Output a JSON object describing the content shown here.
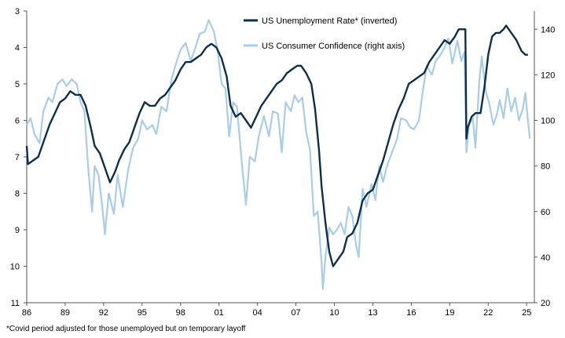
{
  "chart_data": {
    "type": "line",
    "footnote": "*Covid period adjusted for those unemployed but on temporary layoff",
    "x_ticks": [
      "86",
      "89",
      "92",
      "95",
      "98",
      "01",
      "04",
      "07",
      "10",
      "13",
      "16",
      "19",
      "22",
      "25"
    ],
    "x_range": [
      1986.0,
      2025.6
    ],
    "left_axis": {
      "ticks": [
        3,
        4,
        5,
        6,
        7,
        8,
        9,
        10,
        11
      ],
      "range": [
        3,
        11
      ],
      "inverted": true
    },
    "right_axis": {
      "ticks": [
        140,
        120,
        100,
        80,
        60,
        40,
        20
      ],
      "range": [
        20,
        145
      ]
    },
    "series": [
      {
        "name": "US Unemployment Rate* (inverted)",
        "axis": "left",
        "color": "#0b2f4f",
        "points": [
          [
            1986.0,
            6.7
          ],
          [
            1986.1,
            7.2
          ],
          [
            1986.5,
            7.1
          ],
          [
            1986.9,
            7.0
          ],
          [
            1987.3,
            6.6
          ],
          [
            1987.8,
            6.1
          ],
          [
            1988.2,
            5.8
          ],
          [
            1988.6,
            5.5
          ],
          [
            1989.0,
            5.4
          ],
          [
            1989.4,
            5.2
          ],
          [
            1989.8,
            5.3
          ],
          [
            1990.2,
            5.3
          ],
          [
            1990.6,
            5.6
          ],
          [
            1991.0,
            6.2
          ],
          [
            1991.3,
            6.7
          ],
          [
            1991.7,
            6.9
          ],
          [
            1992.1,
            7.3
          ],
          [
            1992.5,
            7.7
          ],
          [
            1992.9,
            7.4
          ],
          [
            1993.2,
            7.1
          ],
          [
            1993.6,
            6.8
          ],
          [
            1994.0,
            6.6
          ],
          [
            1994.4,
            6.2
          ],
          [
            1994.8,
            5.8
          ],
          [
            1995.2,
            5.5
          ],
          [
            1995.6,
            5.6
          ],
          [
            1996.0,
            5.6
          ],
          [
            1996.4,
            5.4
          ],
          [
            1996.8,
            5.3
          ],
          [
            1997.2,
            5.1
          ],
          [
            1997.6,
            4.9
          ],
          [
            1998.0,
            4.6
          ],
          [
            1998.4,
            4.4
          ],
          [
            1998.8,
            4.4
          ],
          [
            1999.2,
            4.3
          ],
          [
            1999.6,
            4.2
          ],
          [
            2000.0,
            4.0
          ],
          [
            2000.4,
            3.9
          ],
          [
            2000.8,
            4.0
          ],
          [
            2001.2,
            4.3
          ],
          [
            2001.6,
            4.8
          ],
          [
            2001.9,
            5.6
          ],
          [
            2002.3,
            5.9
          ],
          [
            2002.7,
            5.8
          ],
          [
            2003.1,
            6.0
          ],
          [
            2003.5,
            6.2
          ],
          [
            2003.9,
            5.9
          ],
          [
            2004.3,
            5.6
          ],
          [
            2004.7,
            5.4
          ],
          [
            2005.1,
            5.2
          ],
          [
            2005.5,
            5.0
          ],
          [
            2005.9,
            4.9
          ],
          [
            2006.3,
            4.7
          ],
          [
            2006.7,
            4.6
          ],
          [
            2007.1,
            4.5
          ],
          [
            2007.4,
            4.5
          ],
          [
            2007.8,
            4.7
          ],
          [
            2008.2,
            5.0
          ],
          [
            2008.5,
            5.7
          ],
          [
            2008.8,
            6.8
          ],
          [
            2009.0,
            7.8
          ],
          [
            2009.3,
            8.8
          ],
          [
            2009.6,
            9.6
          ],
          [
            2009.9,
            10.0
          ],
          [
            2010.3,
            9.8
          ],
          [
            2010.7,
            9.6
          ],
          [
            2011.0,
            9.2
          ],
          [
            2011.4,
            9.1
          ],
          [
            2011.8,
            8.8
          ],
          [
            2012.2,
            8.2
          ],
          [
            2012.6,
            8.0
          ],
          [
            2013.0,
            7.9
          ],
          [
            2013.4,
            7.5
          ],
          [
            2013.8,
            7.1
          ],
          [
            2014.2,
            6.6
          ],
          [
            2014.6,
            6.1
          ],
          [
            2015.0,
            5.7
          ],
          [
            2015.4,
            5.4
          ],
          [
            2015.8,
            5.0
          ],
          [
            2016.2,
            4.9
          ],
          [
            2016.6,
            4.8
          ],
          [
            2017.0,
            4.7
          ],
          [
            2017.4,
            4.4
          ],
          [
            2017.8,
            4.2
          ],
          [
            2018.2,
            4.0
          ],
          [
            2018.6,
            3.8
          ],
          [
            2019.0,
            3.9
          ],
          [
            2019.4,
            3.7
          ],
          [
            2019.7,
            3.5
          ],
          [
            2020.1,
            3.5
          ],
          [
            2020.22,
            3.5
          ],
          [
            2020.3,
            6.5
          ],
          [
            2020.4,
            6.2
          ],
          [
            2020.7,
            5.9
          ],
          [
            2021.0,
            5.8
          ],
          [
            2021.4,
            5.8
          ],
          [
            2021.7,
            5.1
          ],
          [
            2022.0,
            4.2
          ],
          [
            2022.3,
            3.7
          ],
          [
            2022.6,
            3.6
          ],
          [
            2022.9,
            3.6
          ],
          [
            2023.2,
            3.5
          ],
          [
            2023.4,
            3.4
          ],
          [
            2023.8,
            3.6
          ],
          [
            2024.2,
            3.8
          ],
          [
            2024.6,
            4.1
          ],
          [
            2024.9,
            4.2
          ],
          [
            2025.1,
            4.2
          ]
        ]
      },
      {
        "name": "US Consumer Confidence (right axis)",
        "axis": "right",
        "color": "#a7cdea",
        "points": [
          [
            1986.0,
            98
          ],
          [
            1986.3,
            101
          ],
          [
            1986.6,
            94
          ],
          [
            1987.0,
            90
          ],
          [
            1987.3,
            104
          ],
          [
            1987.7,
            110
          ],
          [
            1988.0,
            108
          ],
          [
            1988.4,
            116
          ],
          [
            1988.8,
            118
          ],
          [
            1989.1,
            115
          ],
          [
            1989.5,
            118
          ],
          [
            1989.9,
            116
          ],
          [
            1990.2,
            108
          ],
          [
            1990.5,
            104
          ],
          [
            1990.8,
            79
          ],
          [
            1991.1,
            60
          ],
          [
            1991.3,
            80
          ],
          [
            1991.6,
            76
          ],
          [
            1991.9,
            62
          ],
          [
            1992.1,
            50
          ],
          [
            1992.4,
            68
          ],
          [
            1992.8,
            59
          ],
          [
            1993.1,
            76
          ],
          [
            1993.5,
            62
          ],
          [
            1993.9,
            78
          ],
          [
            1994.3,
            88
          ],
          [
            1994.7,
            92
          ],
          [
            1995.0,
            100
          ],
          [
            1995.4,
            96
          ],
          [
            1995.8,
            98
          ],
          [
            1996.1,
            94
          ],
          [
            1996.5,
            106
          ],
          [
            1996.9,
            104
          ],
          [
            1997.3,
            118
          ],
          [
            1997.7,
            126
          ],
          [
            1998.0,
            131
          ],
          [
            1998.4,
            134
          ],
          [
            1998.8,
            126
          ],
          [
            1999.1,
            131
          ],
          [
            1999.5,
            138
          ],
          [
            1999.9,
            139
          ],
          [
            2000.2,
            144
          ],
          [
            2000.6,
            139
          ],
          [
            2000.9,
            130
          ],
          [
            2001.2,
            116
          ],
          [
            2001.5,
            114
          ],
          [
            2001.8,
            93
          ],
          [
            2002.1,
            108
          ],
          [
            2002.4,
            106
          ],
          [
            2002.8,
            80
          ],
          [
            2003.1,
            63
          ],
          [
            2003.4,
            84
          ],
          [
            2003.8,
            82
          ],
          [
            2004.1,
            93
          ],
          [
            2004.5,
            102
          ],
          [
            2004.9,
            93
          ],
          [
            2005.2,
            104
          ],
          [
            2005.6,
            103
          ],
          [
            2005.9,
            86
          ],
          [
            2006.2,
            108
          ],
          [
            2006.6,
            104
          ],
          [
            2006.9,
            111
          ],
          [
            2007.2,
            108
          ],
          [
            2007.5,
            110
          ],
          [
            2007.8,
            95
          ],
          [
            2008.1,
            87
          ],
          [
            2008.4,
            58
          ],
          [
            2008.7,
            60
          ],
          [
            2009.0,
            38
          ],
          [
            2009.1,
            26
          ],
          [
            2009.3,
            40
          ],
          [
            2009.6,
            53
          ],
          [
            2009.9,
            50
          ],
          [
            2010.2,
            52
          ],
          [
            2010.5,
            55
          ],
          [
            2010.8,
            50
          ],
          [
            2011.1,
            62
          ],
          [
            2011.4,
            58
          ],
          [
            2011.7,
            45
          ],
          [
            2011.9,
            40
          ],
          [
            2012.2,
            70
          ],
          [
            2012.5,
            62
          ],
          [
            2012.9,
            72
          ],
          [
            2013.2,
            65
          ],
          [
            2013.5,
            80
          ],
          [
            2013.8,
            73
          ],
          [
            2014.1,
            80
          ],
          [
            2014.5,
            86
          ],
          [
            2014.9,
            92
          ],
          [
            2015.2,
            101
          ],
          [
            2015.6,
            100
          ],
          [
            2015.9,
            97
          ],
          [
            2016.2,
            96
          ],
          [
            2016.6,
            100
          ],
          [
            2016.9,
            113
          ],
          [
            2017.2,
            124
          ],
          [
            2017.6,
            120
          ],
          [
            2017.9,
            126
          ],
          [
            2018.2,
            128
          ],
          [
            2018.6,
            132
          ],
          [
            2018.9,
            136
          ],
          [
            2019.2,
            125
          ],
          [
            2019.6,
            135
          ],
          [
            2019.9,
            126
          ],
          [
            2020.15,
            130
          ],
          [
            2020.3,
            86
          ],
          [
            2020.5,
            98
          ],
          [
            2020.8,
            101
          ],
          [
            2021.0,
            88
          ],
          [
            2021.3,
            117
          ],
          [
            2021.5,
            128
          ],
          [
            2021.8,
            113
          ],
          [
            2022.1,
            107
          ],
          [
            2022.4,
            98
          ],
          [
            2022.7,
            103
          ],
          [
            2022.9,
            109
          ],
          [
            2023.2,
            101
          ],
          [
            2023.5,
            114
          ],
          [
            2023.8,
            104
          ],
          [
            2024.1,
            110
          ],
          [
            2024.4,
            100
          ],
          [
            2024.7,
            105
          ],
          [
            2024.9,
            112
          ],
          [
            2025.1,
            100
          ],
          [
            2025.25,
            92
          ]
        ]
      }
    ],
    "grid": false,
    "legend_position": "top-center"
  }
}
